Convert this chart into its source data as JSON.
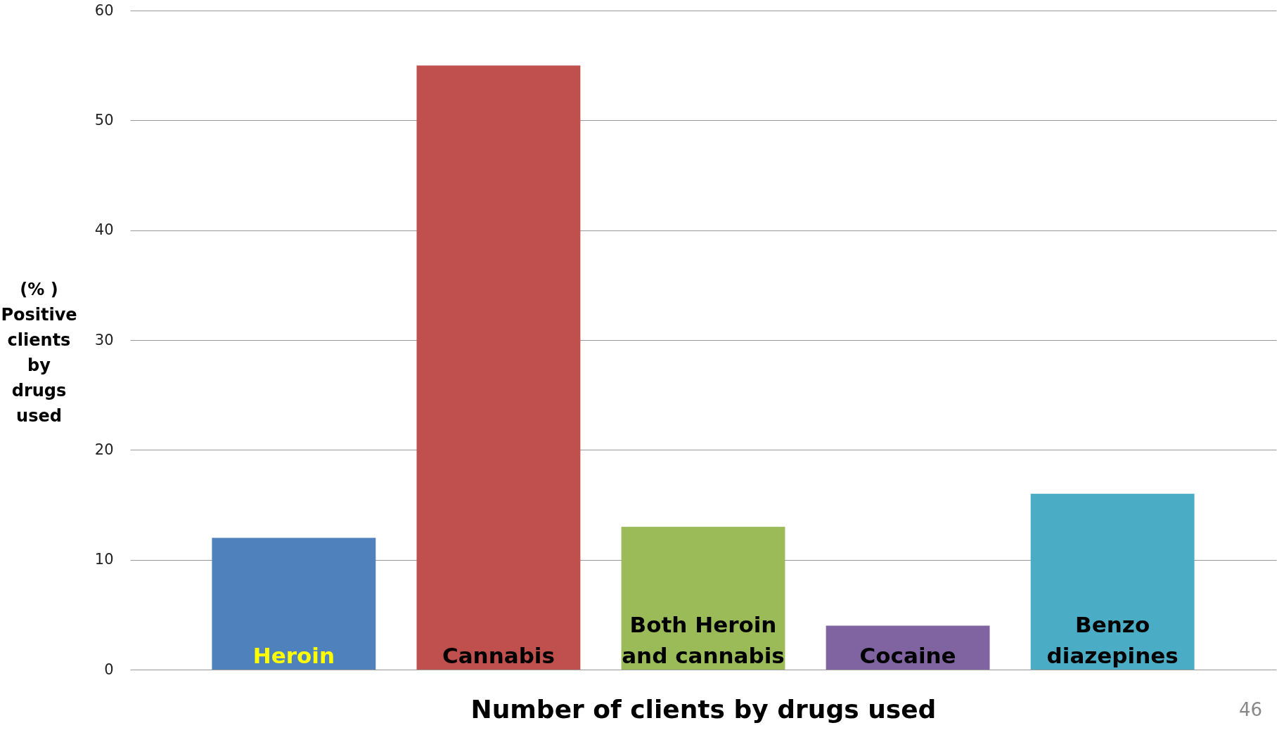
{
  "chart_data": {
    "type": "bar",
    "xlabel": "Number of clients by drugs used",
    "ylabel": "(% ) Positive clients by drugs used",
    "categories": [
      "Heroin",
      "Cannabis",
      "Both Heroin and cannabis",
      "Cocaine",
      "Benzo diazepines"
    ],
    "values": [
      12,
      55,
      13,
      4,
      16
    ],
    "colors": [
      "#4f81bd",
      "#c0504d",
      "#9bbb59",
      "#8064a2",
      "#4bacc6"
    ],
    "ylim": [
      0,
      60
    ],
    "yticks": [
      0,
      10,
      20,
      30,
      40,
      50,
      60
    ],
    "grid": "y",
    "annotations": [
      "46"
    ]
  }
}
